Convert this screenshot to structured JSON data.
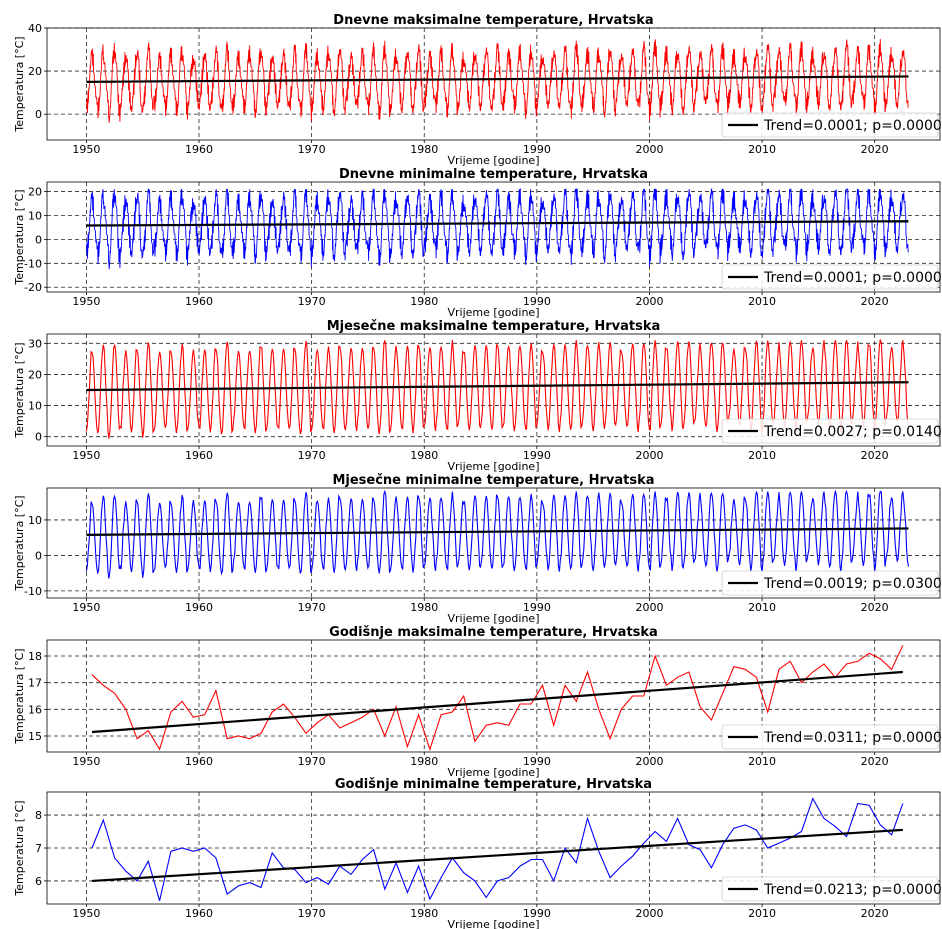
{
  "chart_data": [
    {
      "id": "p1",
      "type": "line",
      "title": "Dnevne maksimalne temperature, Hrvatska",
      "xlabel": "Vrijeme [godine]",
      "ylabel": "Temperatura [°C]",
      "xlim": [
        1946.5,
        2025.8
      ],
      "ylim": [
        -12,
        40
      ],
      "xticks": [
        1950,
        1960,
        1970,
        1980,
        1990,
        2000,
        2010,
        2020
      ],
      "yticks": [
        0,
        20,
        40
      ],
      "grid": true,
      "resolution": "daily",
      "series": [
        {
          "color": "#ff0000",
          "x_start": 1950.0,
          "x_end": 2023.0,
          "seasonal": {
            "center": 15.9,
            "amplitude_min": 10,
            "amplitude_max": 15,
            "peak_phase": "mid-year"
          },
          "range_min": -11,
          "range_max": 38
        }
      ],
      "trend": {
        "color": "#000000",
        "x": [
          1950.0,
          2023.0
        ],
        "y": [
          15.0,
          17.5
        ]
      },
      "legend": {
        "label": "Trend=0.0001; p=0.0000",
        "position": "lower right"
      }
    },
    {
      "id": "p2",
      "type": "line",
      "title": "Dnevne minimalne temperature, Hrvatska",
      "xlabel": "Vrijeme [godine]",
      "ylabel": "Temperatura [°C]",
      "xlim": [
        1946.5,
        2025.8
      ],
      "ylim": [
        -22,
        24
      ],
      "xticks": [
        1950,
        1960,
        1970,
        1980,
        1990,
        2000,
        2010,
        2020
      ],
      "yticks": [
        -20,
        -10,
        0,
        10,
        20
      ],
      "grid": true,
      "resolution": "daily",
      "series": [
        {
          "color": "#0000ff",
          "x_start": 1950.0,
          "x_end": 2023.0,
          "seasonal": {
            "center": 6.5,
            "amplitude_min": 9,
            "amplitude_max": 14,
            "peak_phase": "mid-year"
          },
          "range_min": -20,
          "range_max": 21
        }
      ],
      "trend": {
        "color": "#000000",
        "x": [
          1950.0,
          2023.0
        ],
        "y": [
          5.8,
          7.6
        ]
      },
      "legend": {
        "label": "Trend=0.0001; p=0.0000",
        "position": "lower right"
      }
    },
    {
      "id": "p3",
      "type": "line",
      "title": "Mjesečne maksimalne temperature, Hrvatska",
      "xlabel": "Vrijeme [godine]",
      "ylabel": "Temperatura [°C]",
      "xlim": [
        1946.5,
        2025.8
      ],
      "ylim": [
        -3,
        33
      ],
      "xticks": [
        1950,
        1960,
        1970,
        1980,
        1990,
        2000,
        2010,
        2020
      ],
      "yticks": [
        0,
        10,
        20,
        30
      ],
      "grid": true,
      "resolution": "monthly",
      "series": [
        {
          "color": "#ff0000",
          "x_start": 1950.0,
          "x_end": 2023.0,
          "seasonal": {
            "center": 15.9,
            "amplitude_min": 12,
            "amplitude_max": 15,
            "peak_phase": "mid-year"
          },
          "range_min": -2.5,
          "range_max": 31
        }
      ],
      "trend": {
        "color": "#000000",
        "x": [
          1950.0,
          2023.0
        ],
        "y": [
          15.0,
          17.5
        ]
      },
      "legend": {
        "label": "Trend=0.0027; p=0.0140",
        "position": "lower right"
      }
    },
    {
      "id": "p4",
      "type": "line",
      "title": "Mjesečne minimalne temperature, Hrvatska",
      "xlabel": "Vrijeme [godine]",
      "ylabel": "Temperatura [°C]",
      "xlim": [
        1946.5,
        2025.8
      ],
      "ylim": [
        -12,
        19
      ],
      "xticks": [
        1950,
        1960,
        1970,
        1980,
        1990,
        2000,
        2010,
        2020
      ],
      "yticks": [
        -10,
        0,
        10
      ],
      "grid": true,
      "resolution": "monthly",
      "series": [
        {
          "color": "#0000ff",
          "x_start": 1950.0,
          "x_end": 2023.0,
          "seasonal": {
            "center": 6.5,
            "amplitude_min": 9,
            "amplitude_max": 11.5,
            "peak_phase": "mid-year"
          },
          "range_min": -11,
          "range_max": 18
        }
      ],
      "trend": {
        "color": "#000000",
        "x": [
          1950.0,
          2023.0
        ],
        "y": [
          5.8,
          7.6
        ]
      },
      "legend": {
        "label": "Trend=0.0019; p=0.0300",
        "position": "lower right"
      }
    },
    {
      "id": "p5",
      "type": "line",
      "title": "Godišnje maksimalne temperature, Hrvatska",
      "xlabel": "Vrijeme [godine]",
      "ylabel": "Temperatura [°C]",
      "xlim": [
        1946.5,
        2025.8
      ],
      "ylim": [
        14.4,
        18.6
      ],
      "xticks": [
        1950,
        1960,
        1970,
        1980,
        1990,
        2000,
        2010,
        2020
      ],
      "yticks": [
        15,
        16,
        17,
        18
      ],
      "grid": true,
      "resolution": "annual",
      "series": [
        {
          "color": "#ff0000",
          "x": [
            1950.5,
            1951.5,
            1952.5,
            1953.5,
            1954.5,
            1955.5,
            1956.5,
            1957.5,
            1958.5,
            1959.5,
            1960.5,
            1961.5,
            1962.5,
            1963.5,
            1964.5,
            1965.5,
            1966.5,
            1967.5,
            1968.5,
            1969.5,
            1970.5,
            1971.5,
            1972.5,
            1973.5,
            1974.5,
            1975.5,
            1976.5,
            1977.5,
            1978.5,
            1979.5,
            1980.5,
            1981.5,
            1982.5,
            1983.5,
            1984.5,
            1985.5,
            1986.5,
            1987.5,
            1988.5,
            1989.5,
            1990.5,
            1991.5,
            1992.5,
            1993.5,
            1994.5,
            1995.5,
            1996.5,
            1997.5,
            1998.5,
            1999.5,
            2000.5,
            2001.5,
            2002.5,
            2003.5,
            2004.5,
            2005.5,
            2006.5,
            2007.5,
            2008.5,
            2009.5,
            2010.5,
            2011.5,
            2012.5,
            2013.5,
            2014.5,
            2015.5,
            2016.5,
            2017.5,
            2018.5,
            2019.5,
            2020.5,
            2021.5,
            2022.5
          ],
          "y": [
            17.3,
            16.9,
            16.6,
            16.0,
            14.9,
            15.2,
            14.5,
            15.9,
            16.3,
            15.7,
            15.8,
            16.7,
            14.9,
            15.0,
            14.9,
            15.1,
            15.9,
            16.2,
            15.7,
            15.1,
            15.5,
            15.8,
            15.3,
            15.5,
            15.7,
            16.0,
            15.0,
            16.1,
            14.6,
            15.8,
            14.5,
            15.8,
            15.9,
            16.5,
            14.8,
            15.4,
            15.5,
            15.4,
            16.2,
            16.2,
            16.9,
            15.4,
            16.9,
            16.3,
            17.4,
            16.0,
            14.9,
            16.0,
            16.5,
            16.5,
            18.0,
            16.9,
            17.2,
            17.4,
            16.1,
            15.6,
            16.6,
            17.6,
            17.5,
            17.2,
            15.9,
            17.5,
            17.8,
            17.0,
            17.4,
            17.7,
            17.2,
            17.7,
            17.8,
            18.1,
            17.9,
            17.5,
            18.4
          ]
        }
      ],
      "trend": {
        "color": "#000000",
        "x": [
          1950.5,
          2022.5
        ],
        "y": [
          15.15,
          17.4
        ]
      },
      "legend": {
        "label": "Trend=0.0311; p=0.0000",
        "position": "lower right"
      }
    },
    {
      "id": "p6",
      "type": "line",
      "title": "Godišnje minimalne temperature, Hrvatska",
      "xlabel": "Vrijeme [godine]",
      "ylabel": "Temperatura [°C]",
      "xlim": [
        1946.5,
        2025.8
      ],
      "ylim": [
        5.3,
        8.7
      ],
      "xticks": [
        1950,
        1960,
        1970,
        1980,
        1990,
        2000,
        2010,
        2020
      ],
      "yticks": [
        6,
        7,
        8
      ],
      "grid": true,
      "resolution": "annual",
      "series": [
        {
          "color": "#0000ff",
          "x": [
            1950.5,
            1951.5,
            1952.5,
            1953.5,
            1954.5,
            1955.5,
            1956.5,
            1957.5,
            1958.5,
            1959.5,
            1960.5,
            1961.5,
            1962.5,
            1963.5,
            1964.5,
            1965.5,
            1966.5,
            1967.5,
            1968.5,
            1969.5,
            1970.5,
            1971.5,
            1972.5,
            1973.5,
            1974.5,
            1975.5,
            1976.5,
            1977.5,
            1978.5,
            1979.5,
            1980.5,
            1981.5,
            1982.5,
            1983.5,
            1984.5,
            1985.5,
            1986.5,
            1987.5,
            1988.5,
            1989.5,
            1990.5,
            1991.5,
            1992.5,
            1993.5,
            1994.5,
            1995.5,
            1996.5,
            1997.5,
            1998.5,
            1999.5,
            2000.5,
            2001.5,
            2002.5,
            2003.5,
            2004.5,
            2005.5,
            2006.5,
            2007.5,
            2008.5,
            2009.5,
            2010.5,
            2011.5,
            2012.5,
            2013.5,
            2014.5,
            2015.5,
            2016.5,
            2017.5,
            2018.5,
            2019.5,
            2020.5,
            2021.5,
            2022.5
          ],
          "y": [
            7.0,
            7.85,
            6.7,
            6.3,
            6.0,
            6.6,
            5.4,
            6.9,
            7.0,
            6.9,
            7.0,
            6.7,
            5.6,
            5.85,
            5.95,
            5.8,
            6.85,
            6.4,
            6.35,
            5.95,
            6.1,
            5.9,
            6.45,
            6.2,
            6.65,
            6.95,
            5.75,
            6.55,
            5.65,
            6.45,
            5.45,
            6.1,
            6.7,
            6.25,
            6.0,
            5.5,
            6.0,
            6.1,
            6.45,
            6.65,
            6.65,
            6.0,
            7.0,
            6.55,
            7.9,
            6.9,
            6.1,
            6.45,
            6.75,
            7.15,
            7.5,
            7.2,
            7.9,
            7.1,
            6.95,
            6.4,
            7.1,
            7.6,
            7.7,
            7.55,
            7.0,
            7.15,
            7.3,
            7.5,
            8.5,
            7.9,
            7.65,
            7.35,
            8.35,
            8.3,
            7.7,
            7.4,
            8.35
          ]
        }
      ],
      "trend": {
        "color": "#000000",
        "x": [
          1950.5,
          2022.5
        ],
        "y": [
          6.0,
          7.55
        ]
      },
      "legend": {
        "label": "Trend=0.0213; p=0.0000",
        "position": "lower right"
      }
    }
  ]
}
